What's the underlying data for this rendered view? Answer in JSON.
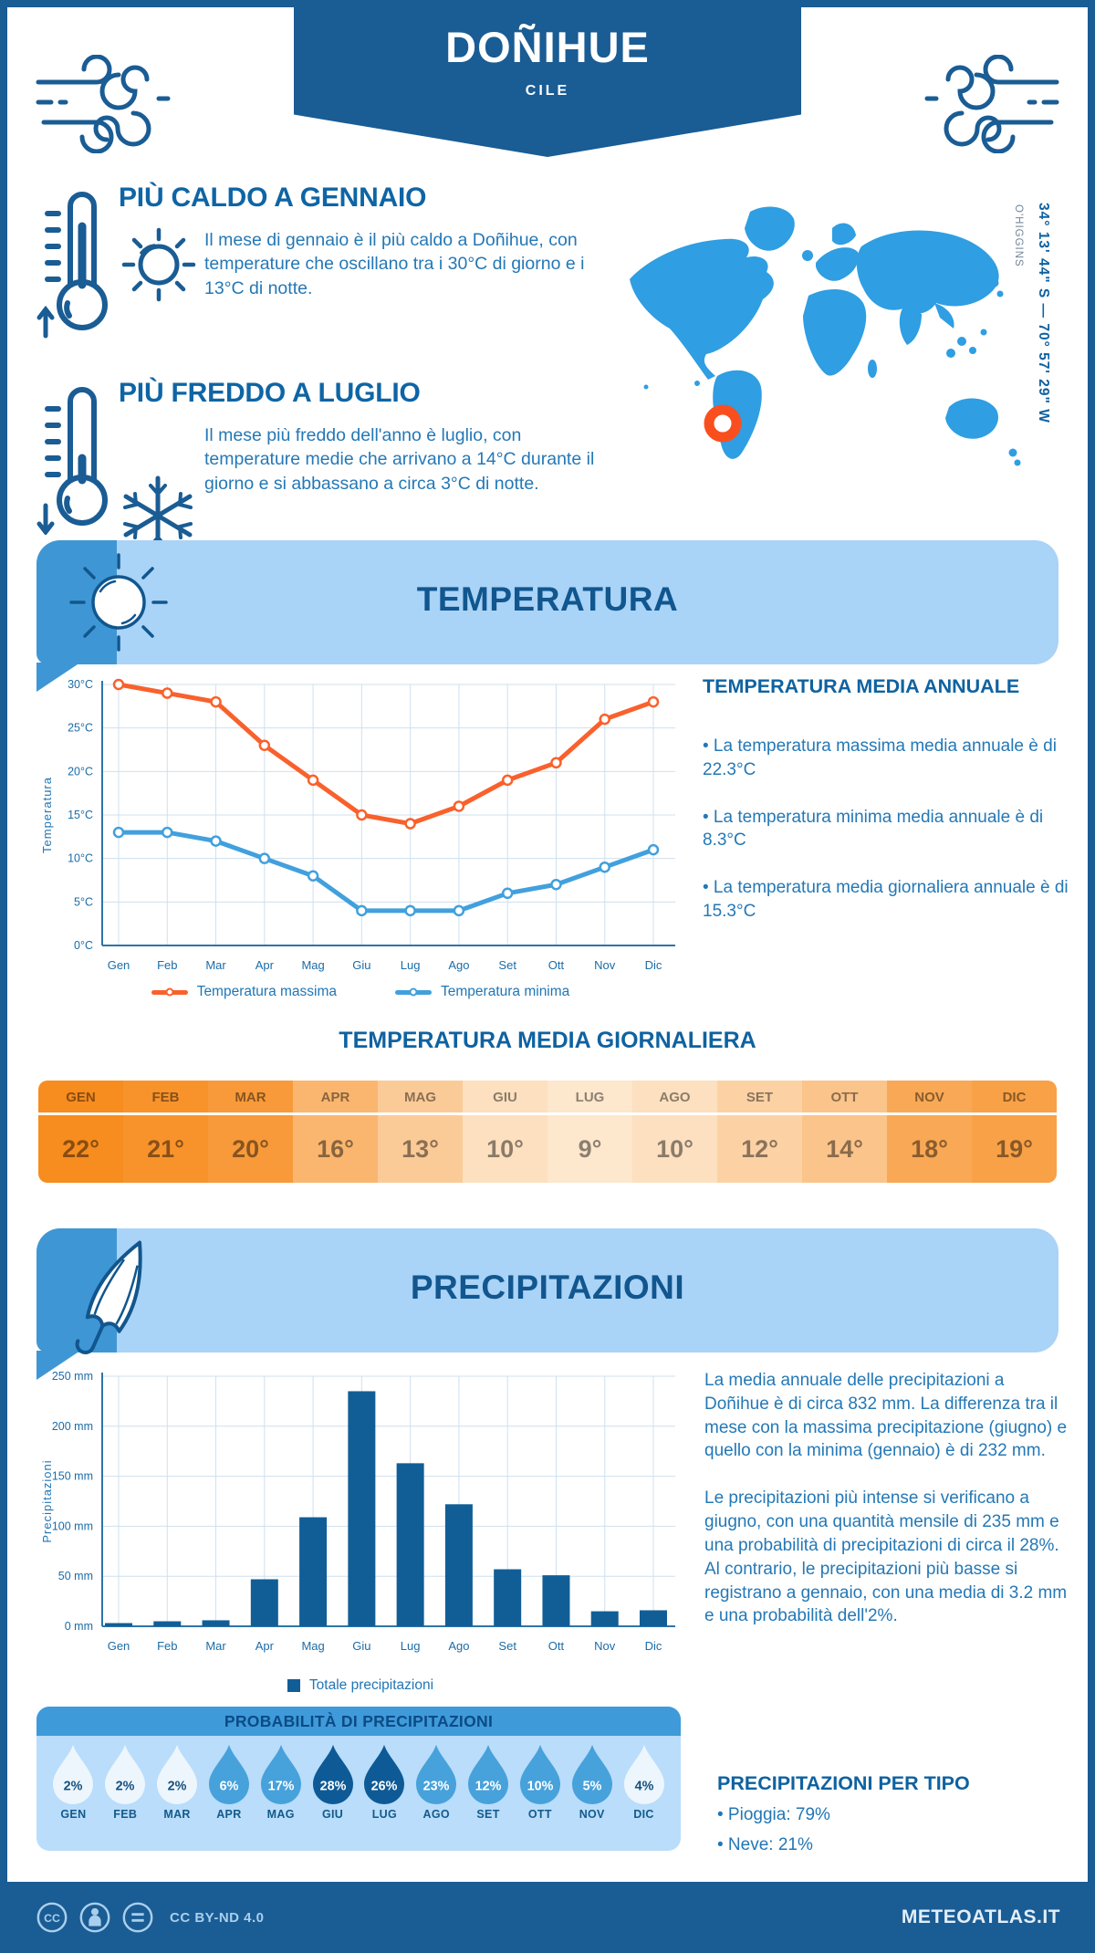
{
  "header": {
    "title": "DOÑIHUE",
    "subtitle": "CILE"
  },
  "hottest": {
    "title": "PIÙ CALDO A GENNAIO",
    "text": "Il mese di gennaio è il più caldo a Doñihue, con temperature che oscillano tra i 30°C di giorno e i 13°C di notte."
  },
  "coldest": {
    "title": "PIÙ FREDDO A LUGLIO",
    "text": "Il mese più freddo dell'anno è luglio, con temperature medie che arrivano a 14°C durante il giorno e si abbassano a circa 3°C di notte."
  },
  "map": {
    "coordinates": "34° 13' 44\" S — 70° 57' 29\" W",
    "region": "O'HIGGINS",
    "land_color": "#2F9EE2",
    "marker_color": "#F94F1F"
  },
  "temperature_section": {
    "banner_title": "TEMPERATURA",
    "annual": {
      "title": "TEMPERATURA MEDIA ANNUALE",
      "bullets": [
        "• La temperatura massima media annuale è di 22.3°C",
        "• La temperatura minima media annuale è di 8.3°C",
        "• La temperatura media giornaliera annuale è di 15.3°C"
      ]
    },
    "daily_table": {
      "title": "TEMPERATURA MEDIA GIORNALIERA",
      "months": [
        "GEN",
        "FEB",
        "MAR",
        "APR",
        "MAG",
        "GIU",
        "LUG",
        "AGO",
        "SET",
        "OTT",
        "NOV",
        "DIC"
      ],
      "values": [
        "22°",
        "21°",
        "20°",
        "16°",
        "13°",
        "10°",
        "9°",
        "10°",
        "12°",
        "14°",
        "18°",
        "19°"
      ],
      "colors": [
        "#F78C1F",
        "#F8932C",
        "#F89A3A",
        "#FAB66F",
        "#FBCB97",
        "#FCE0C0",
        "#FDE7CD",
        "#FCE0C0",
        "#FCD2A5",
        "#FBC48A",
        "#F9A855",
        "#F8A147"
      ]
    }
  },
  "precipitation_section": {
    "banner_title": "PRECIPITAZIONI",
    "paragraph1": "La media annuale delle precipitazioni a Doñihue è di circa 832 mm. La differenza tra il mese con la massima precipitazione (giugno) e quello con la minima (gennaio) è di 232 mm.",
    "paragraph2": "Le precipitazioni più intense si verificano a giugno, con una quantità mensile di 235 mm e una probabilità di precipitazioni di circa il 28%. Al contrario, le precipitazioni più basse si registrano a gennaio, con una media di 3.2 mm e una probabilità dell'2%.",
    "probability": {
      "title": "PROBABILITÀ DI PRECIPITAZIONI",
      "months": [
        "GEN",
        "FEB",
        "MAR",
        "APR",
        "MAG",
        "GIU",
        "LUG",
        "AGO",
        "SET",
        "OTT",
        "NOV",
        "DIC"
      ],
      "values": [
        "2%",
        "2%",
        "2%",
        "6%",
        "17%",
        "28%",
        "26%",
        "23%",
        "12%",
        "10%",
        "5%",
        "4%"
      ],
      "levels": [
        "light",
        "light",
        "light",
        "mid",
        "mid",
        "dark",
        "dark",
        "mid",
        "mid",
        "mid",
        "mid",
        "light"
      ],
      "level_colors": {
        "light": "#EDF5FD",
        "mid": "#47A1DB",
        "dark": "#0E5A96"
      },
      "text_colors": {
        "light": "#14507E",
        "mid": "#FFFFFF",
        "dark": "#FFFFFF"
      }
    },
    "by_type": {
      "title": "PRECIPITAZIONI PER TIPO",
      "items": [
        "• Pioggia: 79%",
        "• Neve: 21%"
      ]
    }
  },
  "chart_data": [
    {
      "type": "line",
      "x": [
        "Gen",
        "Feb",
        "Mar",
        "Apr",
        "Mag",
        "Giu",
        "Lug",
        "Ago",
        "Set",
        "Ott",
        "Nov",
        "Dic"
      ],
      "ylabel": "Temperatura",
      "ylim": [
        0,
        30
      ],
      "ytick_step": 5,
      "yticks": [
        "0°C",
        "5°C",
        "10°C",
        "15°C",
        "20°C",
        "25°C",
        "30°C"
      ],
      "grid": true,
      "legend_position": "bottom",
      "series": [
        {
          "name": "Temperatura massima",
          "color": "#F9612C",
          "values": [
            30,
            29,
            28,
            23,
            19,
            15,
            14,
            16,
            19,
            21,
            26,
            28
          ]
        },
        {
          "name": "Temperatura minima",
          "color": "#41A0DD",
          "values": [
            13,
            13,
            12,
            10,
            8,
            4,
            4,
            4,
            6,
            7,
            9,
            11
          ]
        }
      ]
    },
    {
      "type": "bar",
      "x": [
        "Gen",
        "Feb",
        "Mar",
        "Apr",
        "Mag",
        "Giu",
        "Lug",
        "Ago",
        "Set",
        "Ott",
        "Nov",
        "Dic"
      ],
      "ylabel": "Precipitazioni",
      "ylim": [
        0,
        250
      ],
      "ytick_step": 50,
      "yticks": [
        "0 mm",
        "50 mm",
        "100 mm",
        "150 mm",
        "200 mm",
        "250 mm"
      ],
      "grid": true,
      "legend_position": "bottom",
      "series": [
        {
          "name": "Totale precipitazioni",
          "color": "#115E97",
          "values": [
            3.2,
            5,
            6,
            47,
            109,
            235,
            163,
            122,
            57,
            51,
            15,
            16
          ]
        }
      ]
    }
  ],
  "footer": {
    "license": "CC BY-ND 4.0",
    "brand": "METEOATLAS.IT"
  }
}
